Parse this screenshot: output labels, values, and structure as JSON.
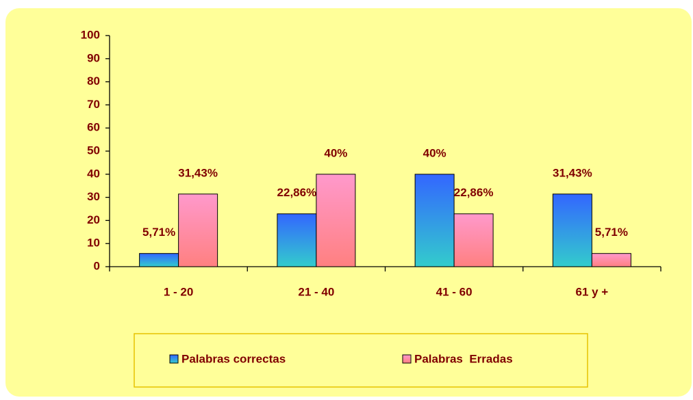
{
  "chart_data": {
    "type": "bar",
    "categories": [
      "1 - 20",
      "21 - 40",
      "41 - 60",
      "61 y +"
    ],
    "series": [
      {
        "name": "Palabras correctas",
        "color": "#3366ff",
        "gradient_to": "#33cccc",
        "values": [
          5.71,
          22.86,
          40,
          31.43
        ],
        "value_labels": [
          "5,71%",
          "22,86%",
          "40%",
          "31,43%"
        ]
      },
      {
        "name": "Palabras  Erradas",
        "color": "#ff99cc",
        "gradient_to": "#ff8080",
        "values": [
          31.43,
          40,
          22.86,
          5.71
        ],
        "value_labels": [
          "31,43%",
          "40%",
          "22,86%",
          "5,71%"
        ]
      }
    ],
    "ylim": [
      0,
      100
    ],
    "yticks": [
      0,
      10,
      20,
      30,
      40,
      50,
      60,
      70,
      80,
      90,
      100
    ],
    "background": "#ffff99",
    "legend": "bottom"
  }
}
